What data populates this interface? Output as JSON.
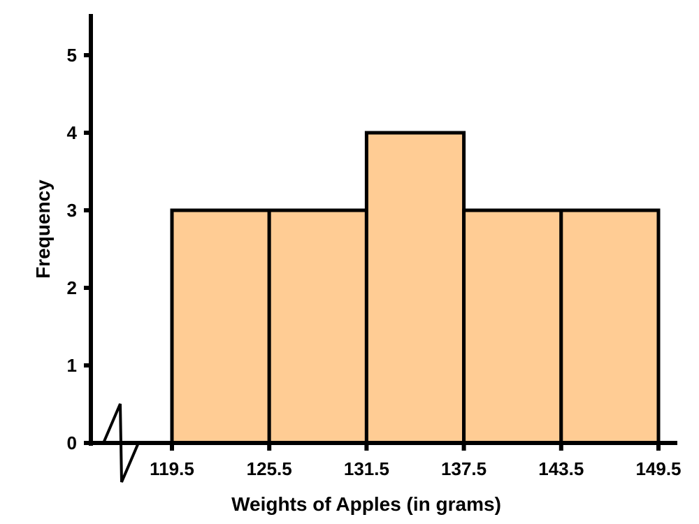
{
  "chart_data": {
    "type": "bar",
    "subtype": "histogram",
    "title": "",
    "xlabel": "Weights of Apples (in grams)",
    "ylabel": "Frequency",
    "bin_edges": [
      119.5,
      125.5,
      131.5,
      137.5,
      143.5,
      149.5
    ],
    "categories": [
      "119.5-125.5",
      "125.5-131.5",
      "131.5-137.5",
      "137.5-143.5",
      "143.5-149.5"
    ],
    "values": [
      3,
      3,
      4,
      3,
      3
    ],
    "x_tick_labels": [
      "119.5",
      "125.5",
      "131.5",
      "137.5",
      "143.5",
      "149.5"
    ],
    "y_tick_labels": [
      "0",
      "1",
      "2",
      "3",
      "4",
      "5"
    ],
    "ylim": [
      0,
      5.5
    ],
    "grid": false,
    "legend": null,
    "axis_break": "x-axis zigzag break near origin",
    "bar_color": "#FFCC94",
    "edge_color": "#000000"
  }
}
